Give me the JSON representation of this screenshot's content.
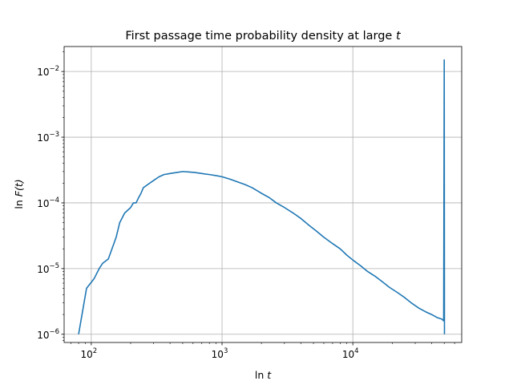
{
  "chart_data": {
    "type": "line",
    "title": "First passage time probability density at large",
    "title_italic": "t",
    "xlabel": "ln",
    "xlabel_italic": "t",
    "ylabel": "ln",
    "ylabel_italic": "F(t)",
    "xscale": "log",
    "yscale": "log",
    "xlim": [
      62,
      68000
    ],
    "ylim": [
      7.5e-07,
      0.024
    ],
    "grid": true,
    "x_ticks": [
      {
        "base": "10",
        "exp": "2",
        "value": 100
      },
      {
        "base": "10",
        "exp": "3",
        "value": 1000
      },
      {
        "base": "10",
        "exp": "4",
        "value": 10000
      }
    ],
    "y_ticks": [
      {
        "base": "10",
        "exp": "−6",
        "value": 1e-06
      },
      {
        "base": "10",
        "exp": "−5",
        "value": 1e-05
      },
      {
        "base": "10",
        "exp": "−4",
        "value": 0.0001
      },
      {
        "base": "10",
        "exp": "−3",
        "value": 0.001
      },
      {
        "base": "10",
        "exp": "−2",
        "value": 0.01
      }
    ],
    "line_color": "#1f77b4",
    "series": [
      {
        "x": [
          80,
          92,
          105,
          115,
          122,
          135,
          150,
          155,
          165,
          180,
          200,
          210,
          220,
          230,
          240,
          250,
          270,
          300,
          330,
          360,
          400,
          450,
          500,
          560,
          620,
          700,
          800,
          900,
          1000,
          1150,
          1300,
          1500,
          1700,
          2000,
          2300,
          2600,
          3000,
          3500,
          4000,
          4600,
          5200,
          6000,
          7000,
          8000,
          9000,
          10000,
          11500,
          13000,
          15000,
          17000,
          19000,
          22000,
          25000,
          28000,
          32000,
          36000,
          40000,
          44000,
          48000,
          49500,
          50000,
          50200
        ],
        "y": [
          1e-06,
          5e-06,
          7e-06,
          1e-05,
          1.2e-05,
          1.4e-05,
          2.5e-05,
          3e-05,
          5e-05,
          7e-05,
          8.5e-05,
          0.0001,
          0.0001,
          0.00012,
          0.00014,
          0.00017,
          0.00019,
          0.00022,
          0.00025,
          0.00027,
          0.00028,
          0.00029,
          0.0003,
          0.000295,
          0.00029,
          0.00028,
          0.00027,
          0.00026,
          0.00025,
          0.00023,
          0.00021,
          0.00019,
          0.00017,
          0.00014,
          0.00012,
          0.0001,
          8.5e-05,
          7e-05,
          5.8e-05,
          4.6e-05,
          3.8e-05,
          3e-05,
          2.4e-05,
          2e-05,
          1.6e-05,
          1.35e-05,
          1.1e-05,
          9e-06,
          7.5e-06,
          6.2e-06,
          5.2e-06,
          4.3e-06,
          3.6e-06,
          3e-06,
          2.5e-06,
          2.2e-06,
          2e-06,
          1.8e-06,
          1.7e-06,
          1.6e-06,
          0.015,
          1e-06
        ]
      }
    ]
  }
}
